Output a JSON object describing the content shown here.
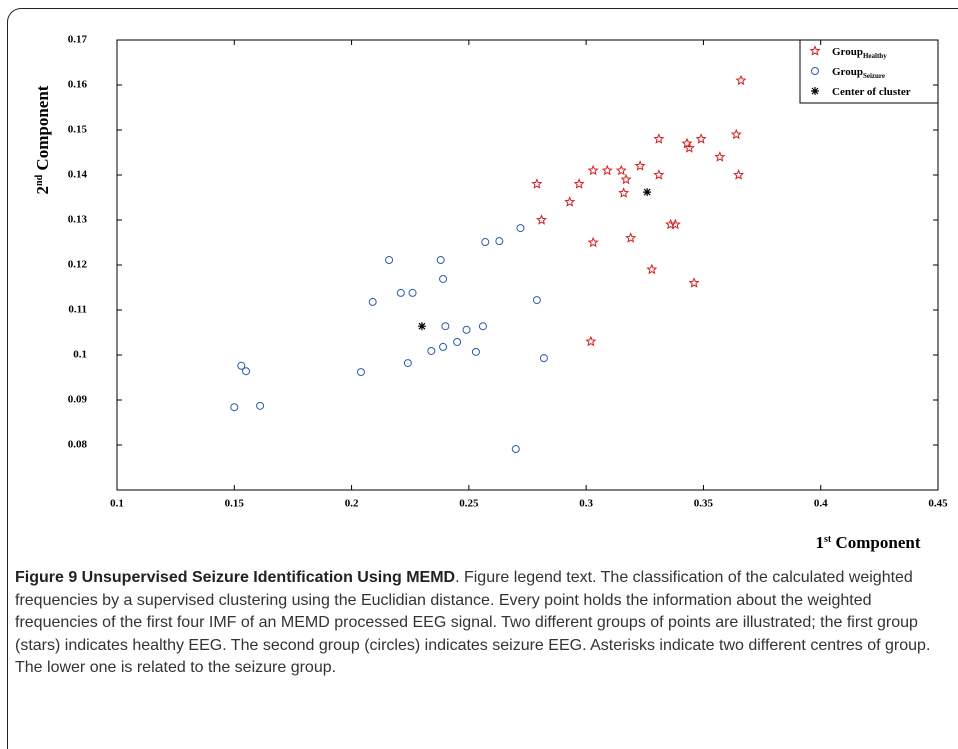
{
  "chart_data": {
    "type": "scatter",
    "xlabel": [
      "1",
      "st",
      " Component"
    ],
    "ylabel": [
      "2",
      "nd",
      " Component"
    ],
    "xlim": [
      0.1,
      0.45
    ],
    "xticks": [
      0.1,
      0.15,
      0.2,
      0.25,
      0.3,
      0.35,
      0.4,
      0.45
    ],
    "ylim": [
      0.07,
      0.17
    ],
    "yticks": [
      0.08,
      0.09,
      0.1,
      0.11,
      0.12,
      0.13,
      0.14,
      0.15,
      0.16,
      0.17
    ],
    "legend": "upper right",
    "series": [
      {
        "name": "Group",
        "subscript": "Healthy",
        "marker": "star",
        "color": "#d42020",
        "x": [
          0.366,
          0.364,
          0.331,
          0.349,
          0.343,
          0.344,
          0.357,
          0.323,
          0.315,
          0.309,
          0.303,
          0.331,
          0.365,
          0.279,
          0.297,
          0.317,
          0.316,
          0.293,
          0.281,
          0.303,
          0.319,
          0.336,
          0.338,
          0.328,
          0.346,
          0.302
        ],
        "values": [
          0.161,
          0.149,
          0.148,
          0.148,
          0.147,
          0.146,
          0.144,
          0.142,
          0.141,
          0.141,
          0.141,
          0.14,
          0.14,
          0.138,
          0.138,
          0.139,
          0.136,
          0.134,
          0.13,
          0.125,
          0.126,
          0.129,
          0.129,
          0.119,
          0.116,
          0.103
        ]
      },
      {
        "name": "Group",
        "subscript": "Seizure",
        "marker": "circle",
        "color": "#2b5aa8",
        "x": [
          0.15,
          0.161,
          0.153,
          0.155,
          0.204,
          0.224,
          0.209,
          0.221,
          0.226,
          0.216,
          0.238,
          0.239,
          0.234,
          0.239,
          0.24,
          0.245,
          0.249,
          0.256,
          0.253,
          0.257,
          0.263,
          0.272,
          0.279,
          0.282,
          0.27
        ],
        "values": [
          0.0884,
          0.0887,
          0.0976,
          0.0964,
          0.0962,
          0.0982,
          0.1118,
          0.1138,
          0.1138,
          0.1211,
          0.1211,
          0.1169,
          0.1009,
          0.1018,
          0.1064,
          0.1029,
          0.1056,
          0.1064,
          0.1007,
          0.1251,
          0.1253,
          0.1282,
          0.1122,
          0.0993,
          0.0791
        ]
      },
      {
        "name": "Center of cluster",
        "marker": "asterisk",
        "color": "#000000",
        "x": [
          0.23,
          0.326
        ],
        "values": [
          0.1064,
          0.1362
        ]
      }
    ]
  },
  "caption": {
    "title": "Figure 9 Unsupervised Seizure Identification Using MEMD",
    "text": ". Figure legend text. The classification of the calculated weighted frequencies by a supervised clustering using the Euclidian distance. Every point holds the information about the weighted frequencies of the first four IMF of an MEMD processed EEG signal. Two different groups of points are illustrated; the first group (stars) indicates healthy EEG. The second group (circles) indicates seizure EEG. Asterisks indicate two different centres of group. The lower one is related to the seizure group."
  }
}
